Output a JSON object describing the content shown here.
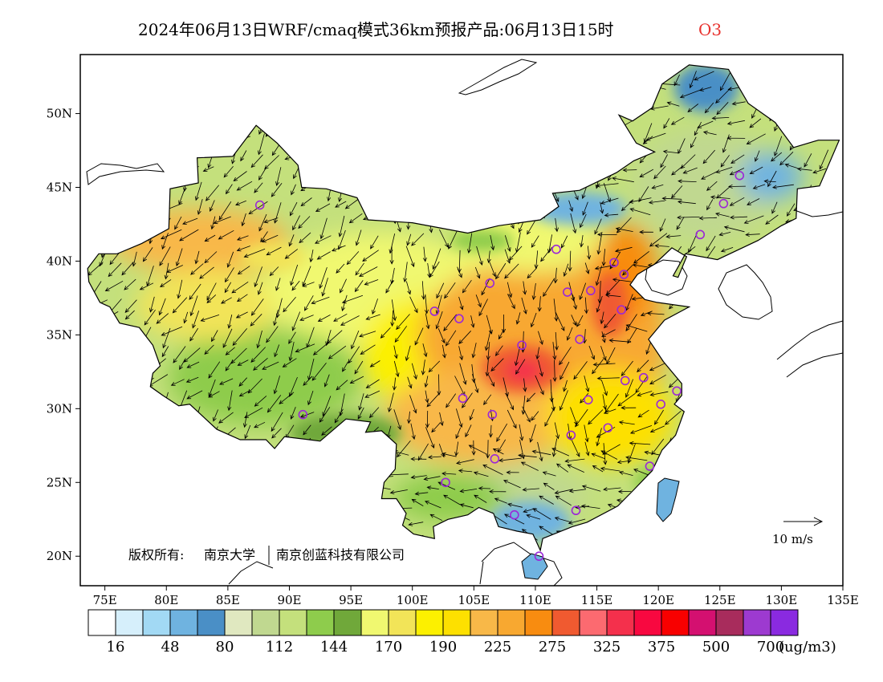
{
  "title": {
    "main": "2024年06月13日WRF/cmaq模式36km预报产品:06月13日15时",
    "species": "O3",
    "species_color": "#e8322e"
  },
  "axes": {
    "lon_labels": [
      "75E",
      "80E",
      "85E",
      "90E",
      "95E",
      "100E",
      "105E",
      "110E",
      "115E",
      "120E",
      "125E",
      "130E",
      "135E"
    ],
    "lat_labels": [
      "20N",
      "25N",
      "30N",
      "35N",
      "40N",
      "45N",
      "50N"
    ],
    "lon_range": [
      73,
      135
    ],
    "lat_range": [
      18,
      54
    ]
  },
  "wind_reference": {
    "label": "10 m/s"
  },
  "copyright": {
    "prefix": "版权所有:",
    "org1": "南京大学",
    "org2": "南京创蓝科技有限公司"
  },
  "legend": {
    "colors": [
      "#ffffff",
      "#d6effb",
      "#a2d9f4",
      "#6fb3e0",
      "#4a8fc6",
      "#e0e8c0",
      "#c0d890",
      "#c4e07c",
      "#8ecc4c",
      "#70a83a",
      "#f0f870",
      "#f2e458",
      "#fcf000",
      "#fde000",
      "#f8b848",
      "#f8a830",
      "#f88c10",
      "#f05a30",
      "#fc6a70",
      "#f4304c",
      "#f80840",
      "#f80000",
      "#d41070",
      "#a82c5c",
      "#9d3ad0",
      "#8a2ae0"
    ],
    "labels": [
      "16",
      "48",
      "80",
      "112",
      "144",
      "170",
      "190",
      "225",
      "275",
      "325",
      "375",
      "500",
      "700"
    ],
    "unit": "(ug/m3)"
  },
  "stations": [
    {
      "lon": 87.6,
      "lat": 43.8
    },
    {
      "lon": 91.1,
      "lat": 29.6
    },
    {
      "lon": 101.8,
      "lat": 36.6
    },
    {
      "lon": 103.8,
      "lat": 36.1
    },
    {
      "lon": 106.3,
      "lat": 38.5
    },
    {
      "lon": 111.7,
      "lat": 40.8
    },
    {
      "lon": 116.4,
      "lat": 39.9
    },
    {
      "lon": 117.2,
      "lat": 39.1
    },
    {
      "lon": 114.5,
      "lat": 38.0
    },
    {
      "lon": 112.6,
      "lat": 37.9
    },
    {
      "lon": 117.0,
      "lat": 36.7
    },
    {
      "lon": 113.6,
      "lat": 34.7
    },
    {
      "lon": 108.9,
      "lat": 34.3
    },
    {
      "lon": 117.3,
      "lat": 31.9
    },
    {
      "lon": 118.8,
      "lat": 32.1
    },
    {
      "lon": 121.5,
      "lat": 31.2
    },
    {
      "lon": 120.2,
      "lat": 30.3
    },
    {
      "lon": 114.3,
      "lat": 30.6
    },
    {
      "lon": 106.5,
      "lat": 29.6
    },
    {
      "lon": 104.1,
      "lat": 30.7
    },
    {
      "lon": 112.9,
      "lat": 28.2
    },
    {
      "lon": 115.9,
      "lat": 28.7
    },
    {
      "lon": 119.3,
      "lat": 26.1
    },
    {
      "lon": 106.7,
      "lat": 26.6
    },
    {
      "lon": 102.7,
      "lat": 25.0
    },
    {
      "lon": 108.3,
      "lat": 22.8
    },
    {
      "lon": 113.3,
      "lat": 23.1
    },
    {
      "lon": 110.3,
      "lat": 20.0
    },
    {
      "lon": 123.4,
      "lat": 41.8
    },
    {
      "lon": 125.3,
      "lat": 43.9
    },
    {
      "lon": 126.6,
      "lat": 45.8
    }
  ]
}
